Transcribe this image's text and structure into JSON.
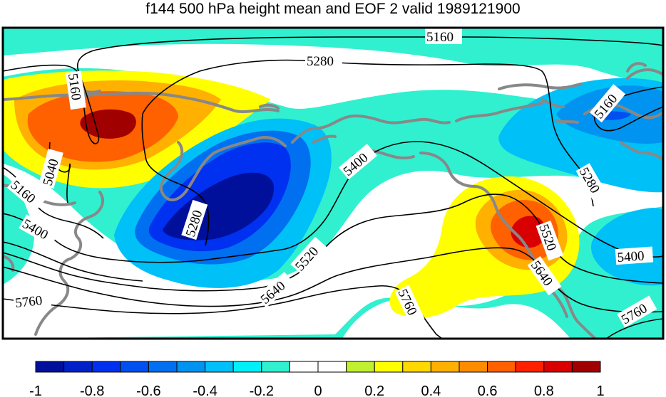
{
  "title": "f144 500 hPa height mean and EOF 2 valid 1989121900",
  "contour_labels": [
    "5160",
    "5280",
    "5160",
    "5040",
    "5160",
    "5400",
    "5280",
    "5400",
    "5520",
    "5640",
    "5760",
    "5160",
    "5280",
    "5520",
    "5400",
    "5640",
    "5760",
    "5760"
  ],
  "colorbar": {
    "tick_labels": [
      "-1",
      "-0.8",
      "-0.6",
      "-0.4",
      "-0.2",
      "0",
      "0.2",
      "0.4",
      "0.6",
      "0.8",
      "1"
    ],
    "colors": [
      "#00109a",
      "#0020c8",
      "#0030f0",
      "#0050f0",
      "#0070f0",
      "#0094f0",
      "#00c0f8",
      "#00f0f8",
      "#30f0d0",
      "#ffffff",
      "#ffffff",
      "#c0f030",
      "#ffff00",
      "#ffd800",
      "#ffb000",
      "#ff8c00",
      "#ff6000",
      "#ff2000",
      "#d80000",
      "#a00000"
    ]
  },
  "colors": {
    "coastline": "#888888",
    "contour": "#000000"
  }
}
